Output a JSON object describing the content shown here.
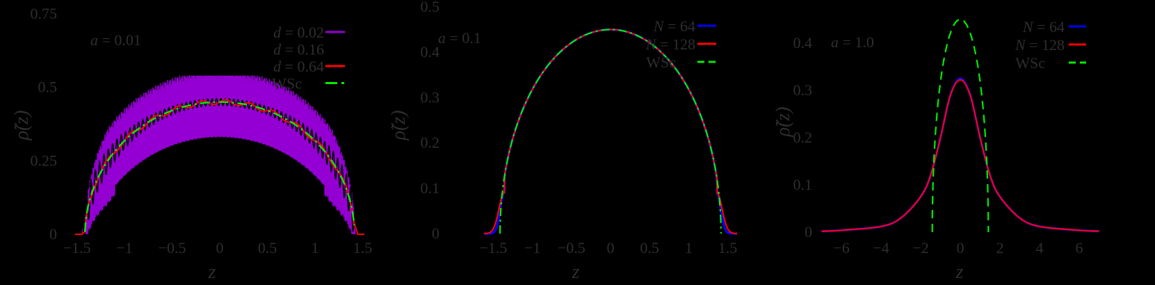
{
  "figure": {
    "background": "#000000",
    "text_color": "#2e2e2e"
  },
  "chart_data": [
    {
      "type": "line",
      "panel": "left",
      "annotation": "a = 0.01",
      "xlabel": "z",
      "ylabel": "ρ̃(z)",
      "xlim": [
        -1.65,
        1.65
      ],
      "ylim": [
        0,
        0.75
      ],
      "xticks": [
        "−1.5",
        "−1",
        "−0.5",
        "0",
        "0.5",
        "1",
        "1.5"
      ],
      "xtick_values": [
        -1.5,
        -1,
        -0.5,
        0,
        0.5,
        1,
        1.5
      ],
      "yticks": [
        "0",
        "0.25",
        "0.5",
        "0.75"
      ],
      "ytick_values": [
        0,
        0.25,
        0.5,
        0.75
      ],
      "grid": false,
      "legend_position": "upper right",
      "series": [
        {
          "name": "d = 0.02",
          "label_var": "d",
          "label_val": "0.02",
          "color": "#9400d3",
          "style": "solid",
          "description": "rapidly oscillating band between ~0.36 and ~0.54 at center",
          "center_min": 0.36,
          "center_max": 0.54,
          "support": [
            -1.45,
            1.45
          ]
        },
        {
          "name": "d = 0.16",
          "label_var": "d",
          "label_val": "0.16",
          "color": "#000000",
          "style": "solid",
          "description": "oscillating curve around semicircle, amplitude ~0.02 at center",
          "center": 0.45,
          "support": [
            -1.45,
            1.45
          ]
        },
        {
          "name": "d = 0.64",
          "label_var": "d",
          "label_val": "0.64",
          "color": "#ff0000",
          "style": "solid",
          "description": "step-like curve following semicircle",
          "center": 0.45,
          "support": [
            -1.5,
            1.5
          ]
        },
        {
          "name": "WSc",
          "label_var": "",
          "label_val": "WSc",
          "color": "#00ee00",
          "style": "dash-dot",
          "description": "Wigner semicircle",
          "x": [
            -1.414,
            -1.2,
            -1.0,
            -0.5,
            0,
            0.5,
            1.0,
            1.2,
            1.414
          ],
          "y": [
            0,
            0.236,
            0.318,
            0.414,
            0.45,
            0.414,
            0.318,
            0.236,
            0
          ]
        }
      ]
    },
    {
      "type": "line",
      "panel": "middle",
      "annotation": "a = 0.1",
      "xlabel": "z",
      "ylabel": "ρ̃(z)",
      "xlim": [
        -1.65,
        1.65
      ],
      "ylim": [
        0,
        0.5
      ],
      "xticks": [
        "−1.5",
        "−1",
        "−0.5",
        "0",
        "0.5",
        "1",
        "1.5"
      ],
      "xtick_values": [
        -1.5,
        -1,
        -0.5,
        0,
        0.5,
        1,
        1.5
      ],
      "yticks": [
        "0",
        "0.1",
        "0.2",
        "0.3",
        "0.4",
        "0.5"
      ],
      "ytick_values": [
        0,
        0.1,
        0.2,
        0.3,
        0.4,
        0.5
      ],
      "grid": false,
      "legend_position": "upper right",
      "series": [
        {
          "name": "N = 64",
          "label_var": "N",
          "label_val": "64",
          "color": "#0000ff",
          "style": "solid",
          "x": [
            -1.6,
            -1.5,
            -1.42,
            -1.3,
            -1.0,
            -0.5,
            0,
            0.5,
            1.0,
            1.3,
            1.42,
            1.5,
            1.6
          ],
          "y": [
            0.0,
            0.01,
            0.06,
            0.2,
            0.32,
            0.41,
            0.45,
            0.41,
            0.32,
            0.2,
            0.06,
            0.01,
            0.0
          ]
        },
        {
          "name": "N = 128",
          "label_var": "N",
          "label_val": "128",
          "color": "#ff0000",
          "style": "solid",
          "x": [
            -1.6,
            -1.5,
            -1.42,
            -1.3,
            -1.0,
            -0.5,
            0,
            0.5,
            1.0,
            1.3,
            1.42,
            1.5,
            1.6
          ],
          "y": [
            0.002,
            0.02,
            0.07,
            0.2,
            0.32,
            0.41,
            0.45,
            0.41,
            0.32,
            0.2,
            0.07,
            0.02,
            0.002
          ]
        },
        {
          "name": "WSc",
          "label_var": "",
          "label_val": "WSc",
          "color": "#00ee00",
          "style": "dashed",
          "x": [
            -1.414,
            -1.2,
            -1.0,
            -0.5,
            0,
            0.5,
            1.0,
            1.2,
            1.414
          ],
          "y": [
            0,
            0.236,
            0.318,
            0.414,
            0.45,
            0.414,
            0.318,
            0.236,
            0
          ]
        }
      ]
    },
    {
      "type": "line",
      "panel": "right",
      "annotation": "a = 1.0",
      "xlabel": "z",
      "ylabel": "ρ̃(z)",
      "xlim": [
        -7,
        7
      ],
      "ylim": [
        0,
        0.45
      ],
      "xticks": [
        "−6",
        "−4",
        "−2",
        "0",
        "2",
        "4",
        "6"
      ],
      "xtick_values": [
        -6,
        -4,
        -2,
        0,
        2,
        4,
        6
      ],
      "yticks": [
        "0",
        "0.1",
        "0.2",
        "0.3",
        "0.4"
      ],
      "ytick_values": [
        0,
        0.1,
        0.2,
        0.3,
        0.4
      ],
      "grid": false,
      "legend_position": "upper right",
      "series": [
        {
          "name": "N = 64",
          "label_var": "N",
          "label_val": "64",
          "color": "#0000ff",
          "style": "solid",
          "x": [
            -7,
            -6,
            -4,
            -3,
            -2,
            -1.5,
            -1,
            -0.5,
            0,
            0.5,
            1,
            1.5,
            2,
            3,
            4,
            6,
            7
          ],
          "y": [
            0.002,
            0.004,
            0.012,
            0.03,
            0.075,
            0.12,
            0.2,
            0.29,
            0.325,
            0.29,
            0.2,
            0.12,
            0.075,
            0.03,
            0.012,
            0.004,
            0.002
          ]
        },
        {
          "name": "N = 128",
          "label_var": "N",
          "label_val": "128",
          "color": "#ff0000",
          "style": "solid",
          "x": [
            -7,
            -6,
            -4,
            -3,
            -2,
            -1.5,
            -1,
            -0.5,
            0,
            0.5,
            1,
            1.5,
            2,
            3,
            4,
            6,
            7
          ],
          "y": [
            0.002,
            0.004,
            0.012,
            0.03,
            0.075,
            0.12,
            0.2,
            0.29,
            0.322,
            0.29,
            0.2,
            0.12,
            0.075,
            0.03,
            0.012,
            0.004,
            0.002
          ]
        },
        {
          "name": "WSc",
          "label_var": "",
          "label_val": "WSc",
          "color": "#00ee00",
          "style": "dashed",
          "x": [
            -1.414,
            -1.2,
            -1.0,
            -0.5,
            0,
            0.5,
            1.0,
            1.2,
            1.414
          ],
          "y": [
            0,
            0.236,
            0.318,
            0.414,
            0.45,
            0.414,
            0.318,
            0.236,
            0
          ]
        }
      ]
    }
  ]
}
